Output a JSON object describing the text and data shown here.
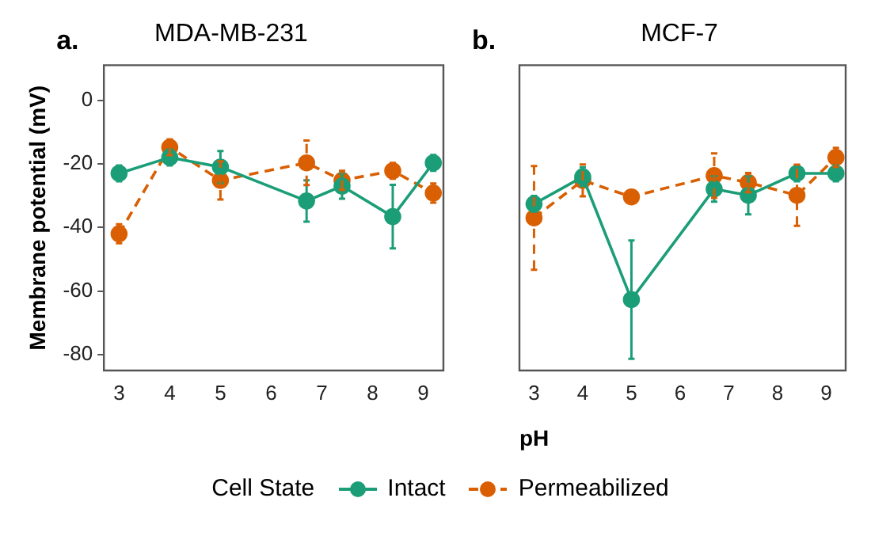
{
  "chart_data": [
    {
      "type": "line",
      "title": "MDA-MB-231",
      "ylabel": "Membrane potential (mV)",
      "annotations": [
        "a."
      ],
      "legend": "bottom",
      "legend_title": "Cell State",
      "marker": "circle",
      "grid": false,
      "x": [
        3,
        4,
        5,
        6.7,
        7.4,
        8.4,
        9.2
      ],
      "xlim": [
        2.7,
        9.4
      ],
      "xticks": [
        3,
        4,
        5,
        6,
        7,
        8,
        9
      ],
      "ylim": [
        -85,
        11
      ],
      "yticks": [
        0,
        -20,
        -40,
        -60,
        -80
      ],
      "series": [
        {
          "name": "Intact",
          "color": "#1b9e77",
          "line_style": "solid",
          "values": [
            -23,
            -18,
            -21,
            -31.7,
            -27,
            -36.6,
            -19.7
          ],
          "errors": [
            2.5,
            2.5,
            5,
            6.5,
            4,
            10,
            2.5
          ]
        },
        {
          "name": "Permeabilized",
          "color": "#d95f02",
          "line_style": "dashed",
          "values": [
            -42,
            -14.8,
            -25.2,
            -19.7,
            -25.2,
            -22.2,
            -29.2
          ],
          "errors": [
            3,
            2.5,
            6,
            7,
            3,
            2.5,
            3
          ]
        }
      ]
    },
    {
      "type": "line",
      "title": "MCF-7",
      "xlabel": "pH",
      "annotations": [
        "b."
      ],
      "tick_labels": "x",
      "marker": "circle",
      "grid": false,
      "x": [
        3,
        4,
        5,
        6.7,
        7.4,
        8.4,
        9.2
      ],
      "xlim": [
        2.7,
        9.4
      ],
      "xticks": [
        3,
        4,
        5,
        6,
        7,
        8,
        9
      ],
      "ylim": [
        -85,
        11
      ],
      "yticks": [
        0,
        -20,
        -40,
        -60,
        -80
      ],
      "series": [
        {
          "color": "#1b9e77",
          "line_style": "solid",
          "values": [
            -32.6,
            -24.1,
            -62.7,
            -27.9,
            -29.9,
            -23,
            -23
          ],
          "errors": [
            2.5,
            3,
            18.6,
            4,
            6,
            2.5,
            2.5
          ]
        },
        {
          "color": "#d95f02",
          "line_style": "dashed",
          "values": [
            -37,
            -25.2,
            -30.4,
            -23.7,
            -25.9,
            -29.9,
            -18
          ],
          "errors": [
            16.3,
            5,
            null,
            7,
            3,
            9.6,
            3
          ]
        }
      ]
    }
  ]
}
